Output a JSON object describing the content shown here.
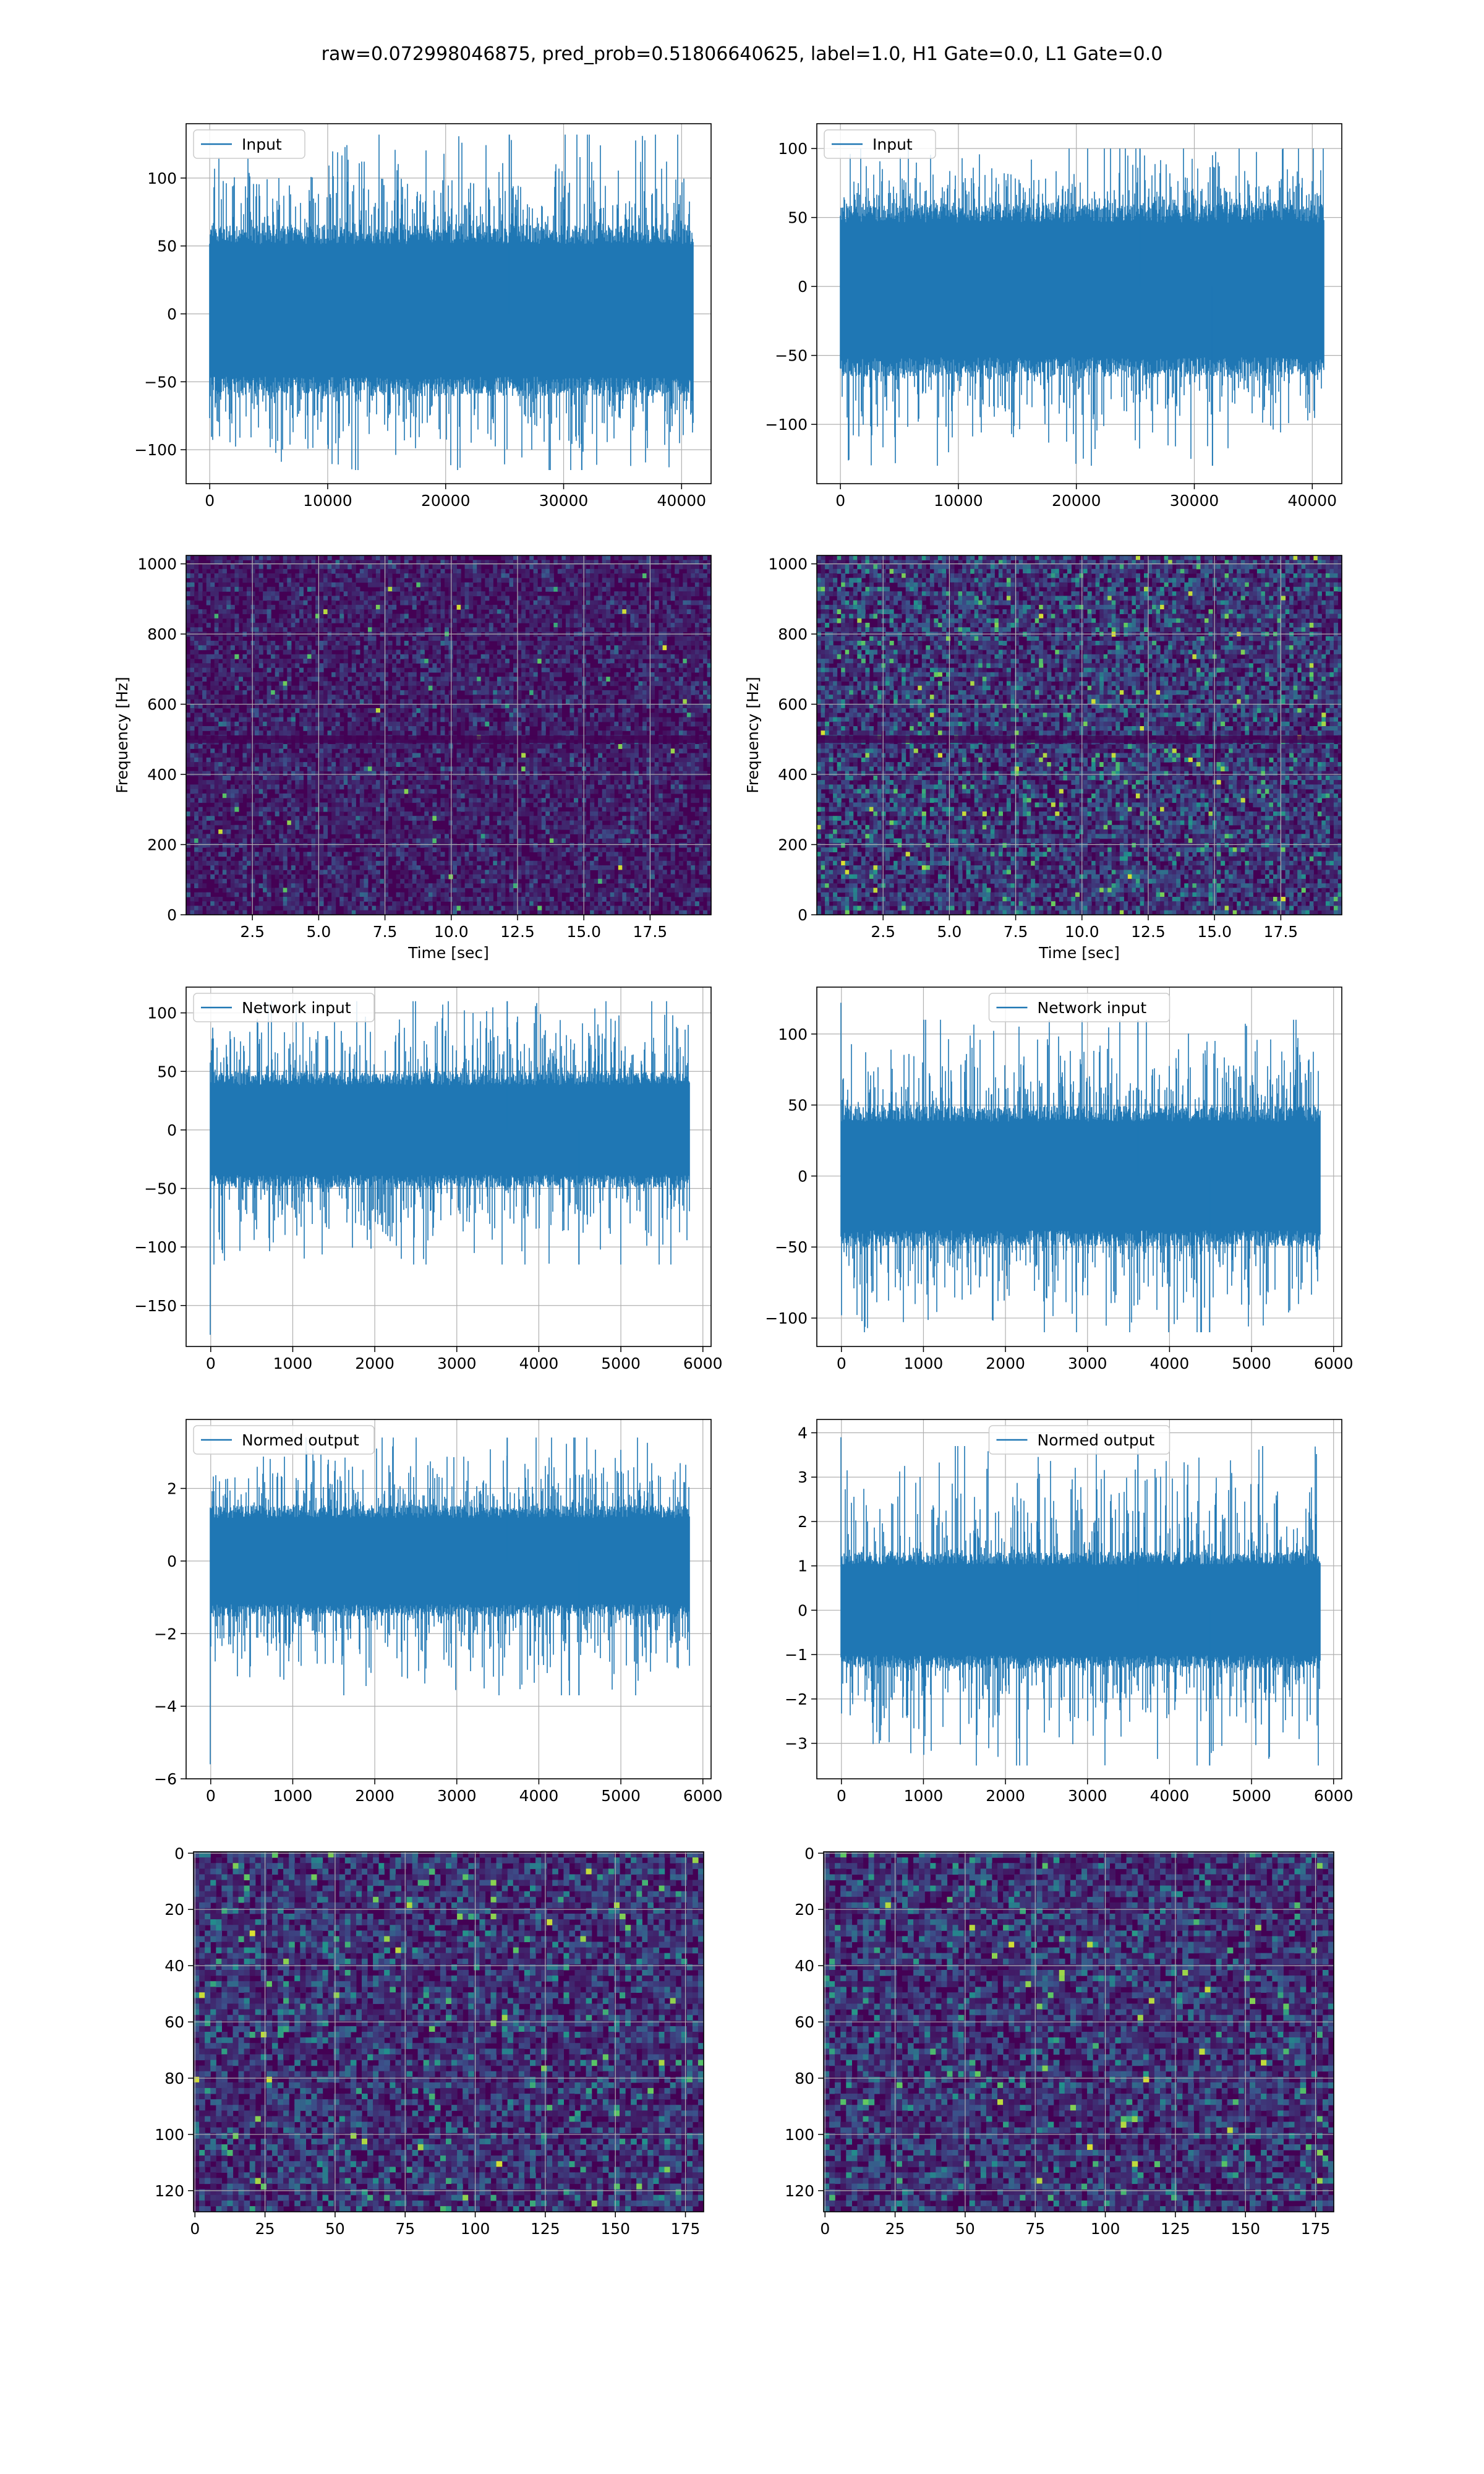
{
  "figure_title": "raw=0.072998046875, pred_prob=0.51806640625, label=1.0, H1 Gate=0.0, L1 Gate=0.0",
  "colors": {
    "line": "#1f77b4",
    "grid": "#b0b0b0",
    "viridis_low": "#440154",
    "viridis_mid": "#21918c",
    "viridis_high": "#fde725"
  },
  "chart_data": [
    {
      "id": "input-left",
      "type": "line",
      "legend": "Input",
      "legend_loc": "upper left",
      "xlim": [
        -2000,
        42500
      ],
      "ylim": [
        -125,
        140
      ],
      "xticks": [
        0,
        10000,
        20000,
        30000,
        40000
      ],
      "yticks": [
        -100,
        -50,
        0,
        50,
        100
      ],
      "n_samples": 40960,
      "x_end": 40960,
      "band": [
        -55,
        60
      ],
      "extremes": [
        -115,
        132
      ],
      "grid": true
    },
    {
      "id": "input-right",
      "type": "line",
      "legend": "Input",
      "legend_loc": "upper left",
      "xlim": [
        -2000,
        42500
      ],
      "ylim": [
        -143,
        118
      ],
      "xticks": [
        0,
        10000,
        20000,
        30000,
        40000
      ],
      "yticks": [
        -100,
        -50,
        0,
        50,
        100
      ],
      "n_samples": 40960,
      "x_end": 40960,
      "band": [
        -60,
        55
      ],
      "extremes": [
        -130,
        100
      ],
      "grid": true
    },
    {
      "id": "spectrogram-left",
      "type": "heatmap",
      "ylabel": "Frequency [Hz]",
      "xlabel": "Time [sec]",
      "xlim": [
        0,
        19.8
      ],
      "ylim": [
        0,
        1024
      ],
      "xticks": [
        2.5,
        5.0,
        7.5,
        10.0,
        12.5,
        15.0,
        17.5
      ],
      "yticks": [
        0,
        200,
        400,
        600,
        800,
        1000
      ],
      "colormap": "viridis",
      "intensity": "low",
      "grid": true
    },
    {
      "id": "spectrogram-right",
      "type": "heatmap",
      "ylabel": "Frequency [Hz]",
      "xlabel": "Time [sec]",
      "xlim": [
        0,
        19.8
      ],
      "ylim": [
        0,
        1024
      ],
      "xticks": [
        2.5,
        5.0,
        7.5,
        10.0,
        12.5,
        15.0,
        17.5
      ],
      "yticks": [
        0,
        200,
        400,
        600,
        800,
        1000
      ],
      "colormap": "viridis",
      "intensity": "high",
      "grid": true
    },
    {
      "id": "network-input-left",
      "type": "line",
      "legend": "Network input",
      "legend_loc": "upper left",
      "xlim": [
        -300,
        6100
      ],
      "ylim": [
        -185,
        122
      ],
      "xticks": [
        0,
        1000,
        2000,
        3000,
        4000,
        5000,
        6000
      ],
      "yticks": [
        -150,
        -100,
        -50,
        0,
        50,
        100
      ],
      "n_samples": 5830,
      "x_end": 5830,
      "band": [
        -45,
        45
      ],
      "extremes": [
        -115,
        110
      ],
      "start_spike": -175,
      "grid": true
    },
    {
      "id": "network-input-right",
      "type": "line",
      "legend": "Network input",
      "legend_loc": "upper center",
      "xlim": [
        -300,
        6100
      ],
      "ylim": [
        -120,
        133
      ],
      "xticks": [
        0,
        1000,
        2000,
        3000,
        4000,
        5000,
        6000
      ],
      "yticks": [
        -100,
        -50,
        0,
        50,
        100
      ],
      "n_samples": 5830,
      "x_end": 5830,
      "band": [
        -45,
        45
      ],
      "extremes": [
        -110,
        110
      ],
      "start_spike": 122,
      "grid": true
    },
    {
      "id": "normed-output-left",
      "type": "line",
      "legend": "Normed output",
      "legend_loc": "upper left",
      "xlim": [
        -300,
        6100
      ],
      "ylim": [
        -6.0,
        3.9
      ],
      "xticks": [
        0,
        1000,
        2000,
        3000,
        4000,
        5000,
        6000
      ],
      "yticks": [
        -6,
        -4,
        -2,
        0,
        2
      ],
      "n_samples": 5830,
      "x_end": 5830,
      "band": [
        -1.4,
        1.4
      ],
      "extremes": [
        -3.7,
        3.4
      ],
      "start_spike": -5.6,
      "grid": true
    },
    {
      "id": "normed-output-right",
      "type": "line",
      "legend": "Normed output",
      "legend_loc": "upper center",
      "xlim": [
        -300,
        6100
      ],
      "ylim": [
        -3.8,
        4.3
      ],
      "xticks": [
        0,
        1000,
        2000,
        3000,
        4000,
        5000,
        6000
      ],
      "yticks": [
        -3,
        -2,
        -1,
        0,
        1,
        2,
        3,
        4
      ],
      "n_samples": 5830,
      "x_end": 5830,
      "band": [
        -1.2,
        1.2
      ],
      "extremes": [
        -3.5,
        3.7
      ],
      "start_spike": 3.9,
      "grid": true
    },
    {
      "id": "image-left",
      "type": "heatmap",
      "xlim": [
        -0.5,
        181.5
      ],
      "ylim": [
        127.5,
        -0.5
      ],
      "xticks": [
        0,
        25,
        50,
        75,
        100,
        125,
        150,
        175
      ],
      "yticks": [
        0,
        20,
        40,
        60,
        80,
        100,
        120
      ],
      "cols": 182,
      "rows": 128,
      "colormap": "viridis",
      "grid": true
    },
    {
      "id": "image-right",
      "type": "heatmap",
      "xlim": [
        -0.5,
        181.5
      ],
      "ylim": [
        127.5,
        -0.5
      ],
      "xticks": [
        0,
        25,
        50,
        75,
        100,
        125,
        150,
        175
      ],
      "yticks": [
        0,
        20,
        40,
        60,
        80,
        100,
        120
      ],
      "cols": 182,
      "rows": 128,
      "colormap": "viridis",
      "grid": true
    }
  ]
}
